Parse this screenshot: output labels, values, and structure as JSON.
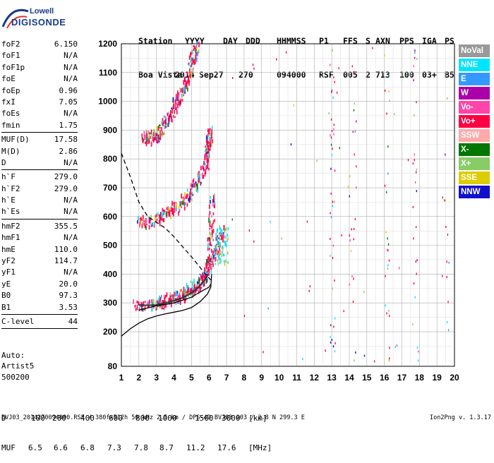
{
  "logo": {
    "line1": "Lowell",
    "line2": "DIGISONDE"
  },
  "header": {
    "labels": [
      "Station",
      "YYYY",
      "DAY",
      "DDD",
      "HHMMSS",
      "P1",
      "FFS",
      "S",
      "AXN",
      "PPS",
      "IGA",
      "PS"
    ],
    "values": [
      "Boa Vista",
      "2014",
      "Sep27",
      "270",
      "094000",
      "RSF",
      "005",
      "2",
      "713",
      "100",
      "03+",
      "B5"
    ]
  },
  "params": {
    "group1": [
      {
        "k": "foF2",
        "v": "6.150"
      },
      {
        "k": "foF1",
        "v": "N/A"
      },
      {
        "k": "foF1p",
        "v": "N/A"
      },
      {
        "k": "foE",
        "v": "N/A"
      },
      {
        "k": "foEp",
        "v": "0.96"
      },
      {
        "k": "fxI",
        "v": "7.05"
      },
      {
        "k": "foEs",
        "v": "N/A"
      },
      {
        "k": "fmin",
        "v": "1.75"
      }
    ],
    "group2": [
      {
        "k": "MUF(D)",
        "v": "17.58"
      },
      {
        "k": "M(D)",
        "v": "2.86"
      },
      {
        "k": "D",
        "v": "N/A"
      }
    ],
    "group3": [
      {
        "k": "h`F",
        "v": "279.0"
      },
      {
        "k": "h`F2",
        "v": "279.0"
      },
      {
        "k": "h`E",
        "v": "N/A"
      },
      {
        "k": "h`Es",
        "v": "N/A"
      }
    ],
    "group4": [
      {
        "k": "hmF2",
        "v": "355.5"
      },
      {
        "k": "hmF1",
        "v": "N/A"
      },
      {
        "k": "hmE",
        "v": "110.0"
      },
      {
        "k": "yF2",
        "v": "114.7"
      },
      {
        "k": "yF1",
        "v": "N/A"
      },
      {
        "k": "yE",
        "v": "20.0"
      },
      {
        "k": "B0",
        "v": "97.3"
      },
      {
        "k": "B1",
        "v": "3.53"
      }
    ],
    "group5": [
      {
        "k": "C-level",
        "v": "44"
      }
    ]
  },
  "auto_text": {
    "line1": "Auto:",
    "line2": "Artist5",
    "line3": "500200"
  },
  "legend": [
    {
      "label": "NoVal",
      "color": "#999999"
    },
    {
      "label": "NNE",
      "color": "#00e5ff"
    },
    {
      "label": "E",
      "color": "#3399ff"
    },
    {
      "label": "W",
      "color": "#aa00aa"
    },
    {
      "label": "Vo-",
      "color": "#ff44aa"
    },
    {
      "label": "Vo+",
      "color": "#ff0044"
    },
    {
      "label": "SSW",
      "color": "#ffaaaa"
    },
    {
      "label": "X-",
      "color": "#007700"
    },
    {
      "label": "X+",
      "color": "#88cc66"
    },
    {
      "label": "SSE",
      "color": "#ddcc00"
    },
    {
      "label": "NNW",
      "color": "#1111cc"
    }
  ],
  "muf_table": {
    "d_label": "D",
    "d_values": [
      "100",
      "200",
      "400",
      "600",
      "800",
      "1000",
      "1500",
      "3000"
    ],
    "d_unit": "[km]",
    "muf_label": "MUF",
    "muf_values": [
      "6.5",
      "6.6",
      "6.8",
      "7.3",
      "7.8",
      "8.7",
      "11.2",
      "17.6"
    ],
    "muf_unit": "[MHz]"
  },
  "footer": "BVJ03_2014270094000.RSF / 380fx512h 50 kHz 2.5 km / DPS-4D BVJ03 003 / 2.8 N 299.3 E",
  "version": "Ion2Png v. 1.3.17",
  "chart_data": {
    "type": "scatter",
    "xlim": [
      1,
      20
    ],
    "ylim": [
      80,
      1200
    ],
    "xticks": [
      1,
      2,
      3,
      4,
      5,
      6,
      7,
      8,
      9,
      10,
      11,
      12,
      13,
      14,
      15,
      16,
      17,
      18,
      19,
      20
    ],
    "yticks": [
      80,
      200,
      300,
      400,
      500,
      600,
      700,
      800,
      900,
      1000,
      1100,
      1200
    ],
    "grid": true,
    "xunit": "MHz",
    "yunit": "km",
    "traces": [
      {
        "name": "F2 first hop",
        "points": [
          [
            1.8,
            290
          ],
          [
            2.2,
            288
          ],
          [
            2.6,
            290
          ],
          [
            3.0,
            292
          ],
          [
            3.4,
            297
          ],
          [
            3.8,
            305
          ],
          [
            4.2,
            312
          ],
          [
            4.6,
            322
          ],
          [
            5.0,
            337
          ],
          [
            5.3,
            350
          ],
          [
            5.6,
            370
          ],
          [
            5.8,
            390
          ],
          [
            5.95,
            420
          ],
          [
            6.05,
            460
          ],
          [
            6.1,
            520
          ],
          [
            6.15,
            600
          ],
          [
            6.18,
            680
          ]
        ]
      },
      {
        "name": "F2 x-trace",
        "points": [
          [
            3.0,
            300
          ],
          [
            3.6,
            310
          ],
          [
            4.2,
            320
          ],
          [
            4.8,
            340
          ],
          [
            5.4,
            370
          ],
          [
            5.9,
            410
          ],
          [
            6.3,
            460
          ],
          [
            6.6,
            510
          ],
          [
            6.8,
            560
          ]
        ]
      },
      {
        "name": "F2 second hop",
        "points": [
          [
            2.0,
            580
          ],
          [
            2.5,
            580
          ],
          [
            3.0,
            590
          ],
          [
            3.5,
            605
          ],
          [
            4.0,
            625
          ],
          [
            4.5,
            650
          ],
          [
            5.0,
            685
          ],
          [
            5.4,
            720
          ],
          [
            5.7,
            760
          ],
          [
            5.9,
            800
          ],
          [
            6.0,
            850
          ],
          [
            6.1,
            900
          ]
        ]
      },
      {
        "name": "F2 third hop",
        "points": [
          [
            2.2,
            875
          ],
          [
            2.6,
            870
          ],
          [
            3.0,
            880
          ],
          [
            3.4,
            910
          ],
          [
            3.8,
            950
          ],
          [
            4.2,
            1000
          ],
          [
            4.6,
            1050
          ],
          [
            4.9,
            1100
          ],
          [
            5.1,
            1150
          ],
          [
            5.3,
            1190
          ]
        ]
      }
    ],
    "profile_solid": [
      [
        1,
        185
      ],
      [
        1.5,
        210
      ],
      [
        2.0,
        230
      ],
      [
        2.5,
        245
      ],
      [
        3.0,
        255
      ],
      [
        3.5,
        262
      ],
      [
        4.0,
        268
      ],
      [
        4.5,
        274
      ],
      [
        5.0,
        284
      ],
      [
        5.5,
        305
      ],
      [
        5.9,
        330
      ],
      [
        6.1,
        355
      ],
      [
        6.15,
        400
      ]
    ],
    "profile_solid_low": [
      [
        2.0,
        275
      ],
      [
        3.0,
        290
      ],
      [
        4.0,
        300
      ],
      [
        4.5,
        310
      ],
      [
        5.0,
        320
      ],
      [
        5.4,
        335
      ],
      [
        5.7,
        345
      ],
      [
        6.0,
        355
      ],
      [
        6.1,
        365
      ]
    ],
    "profile_dashed": [
      [
        1,
        820
      ],
      [
        1.5,
        740
      ],
      [
        2.0,
        650
      ],
      [
        2.5,
        600
      ],
      [
        3.0,
        580
      ],
      [
        3.5,
        560
      ],
      [
        4.0,
        530
      ],
      [
        4.5,
        495
      ],
      [
        5.0,
        460
      ],
      [
        5.4,
        430
      ],
      [
        5.8,
        400
      ],
      [
        6.1,
        380
      ]
    ],
    "dark_trace": [
      [
        2.0,
        293
      ],
      [
        2.5,
        292
      ],
      [
        3.0,
        293
      ],
      [
        3.5,
        300
      ],
      [
        4.0,
        308
      ],
      [
        4.5,
        318
      ],
      [
        5.0,
        335
      ],
      [
        5.4,
        355
      ],
      [
        5.7,
        375
      ],
      [
        5.95,
        400
      ]
    ]
  }
}
